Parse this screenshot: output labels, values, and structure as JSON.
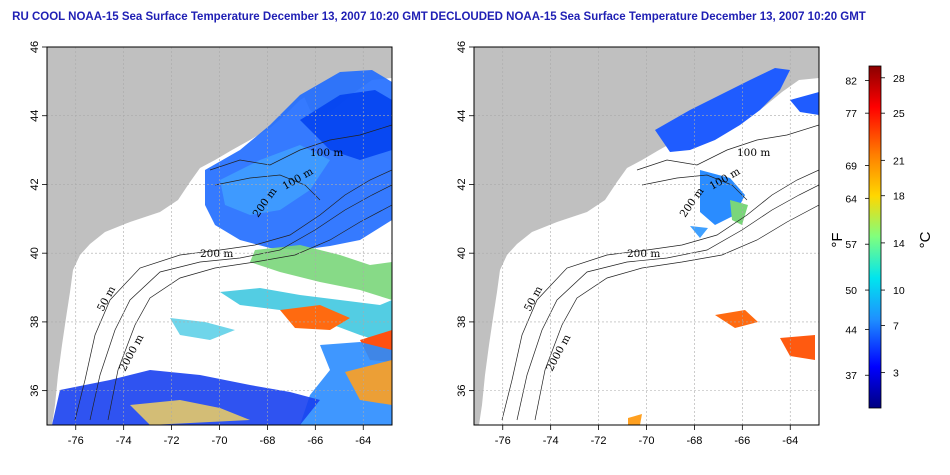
{
  "maps": [
    {
      "id": "left",
      "title": "RU COOL NOAA-15 Sea Surface Temperature December 13, 2007 10:20 GMT",
      "contour_labels": [
        "50 m",
        "200 m",
        "100 m",
        "100 m",
        "200 m",
        "2000 m",
        "50 m"
      ]
    },
    {
      "id": "right",
      "title": "DECLOUDED NOAA-15 Sea Surface Temperature December 13, 2007 10:20 GMT",
      "contour_labels": [
        "50 m",
        "200 m",
        "100 m",
        "100 m",
        "200 m",
        "2000 m",
        "50 m"
      ]
    }
  ],
  "axes": {
    "lon_ticks": [
      "-76",
      "-74",
      "-72",
      "-70",
      "-68",
      "-66",
      "-64"
    ],
    "lat_ticks": [
      "36",
      "38",
      "40",
      "42",
      "44",
      "46"
    ],
    "lon_range": [
      -77.2,
      -62.8
    ],
    "lat_range": [
      35,
      46
    ]
  },
  "colorbar": {
    "fahrenheit_ticks": [
      "82",
      "77",
      "69",
      "64",
      "57",
      "50",
      "44",
      "37"
    ],
    "celsius_ticks": [
      "28",
      "25",
      "21",
      "18",
      "14",
      "10",
      "7",
      "3"
    ],
    "fahrenheit_unit": "°F",
    "celsius_unit": "°C",
    "range_c": [
      0,
      29
    ]
  },
  "colors": {
    "land": "#c0c0c0",
    "ocean": "#ffffff",
    "title": "#1f1fb4",
    "scale": [
      "#000080",
      "#0000ff",
      "#1e90ff",
      "#00e5ee",
      "#7fff7f",
      "#ffd700",
      "#ff7f00",
      "#ff0000",
      "#8b0000"
    ]
  }
}
